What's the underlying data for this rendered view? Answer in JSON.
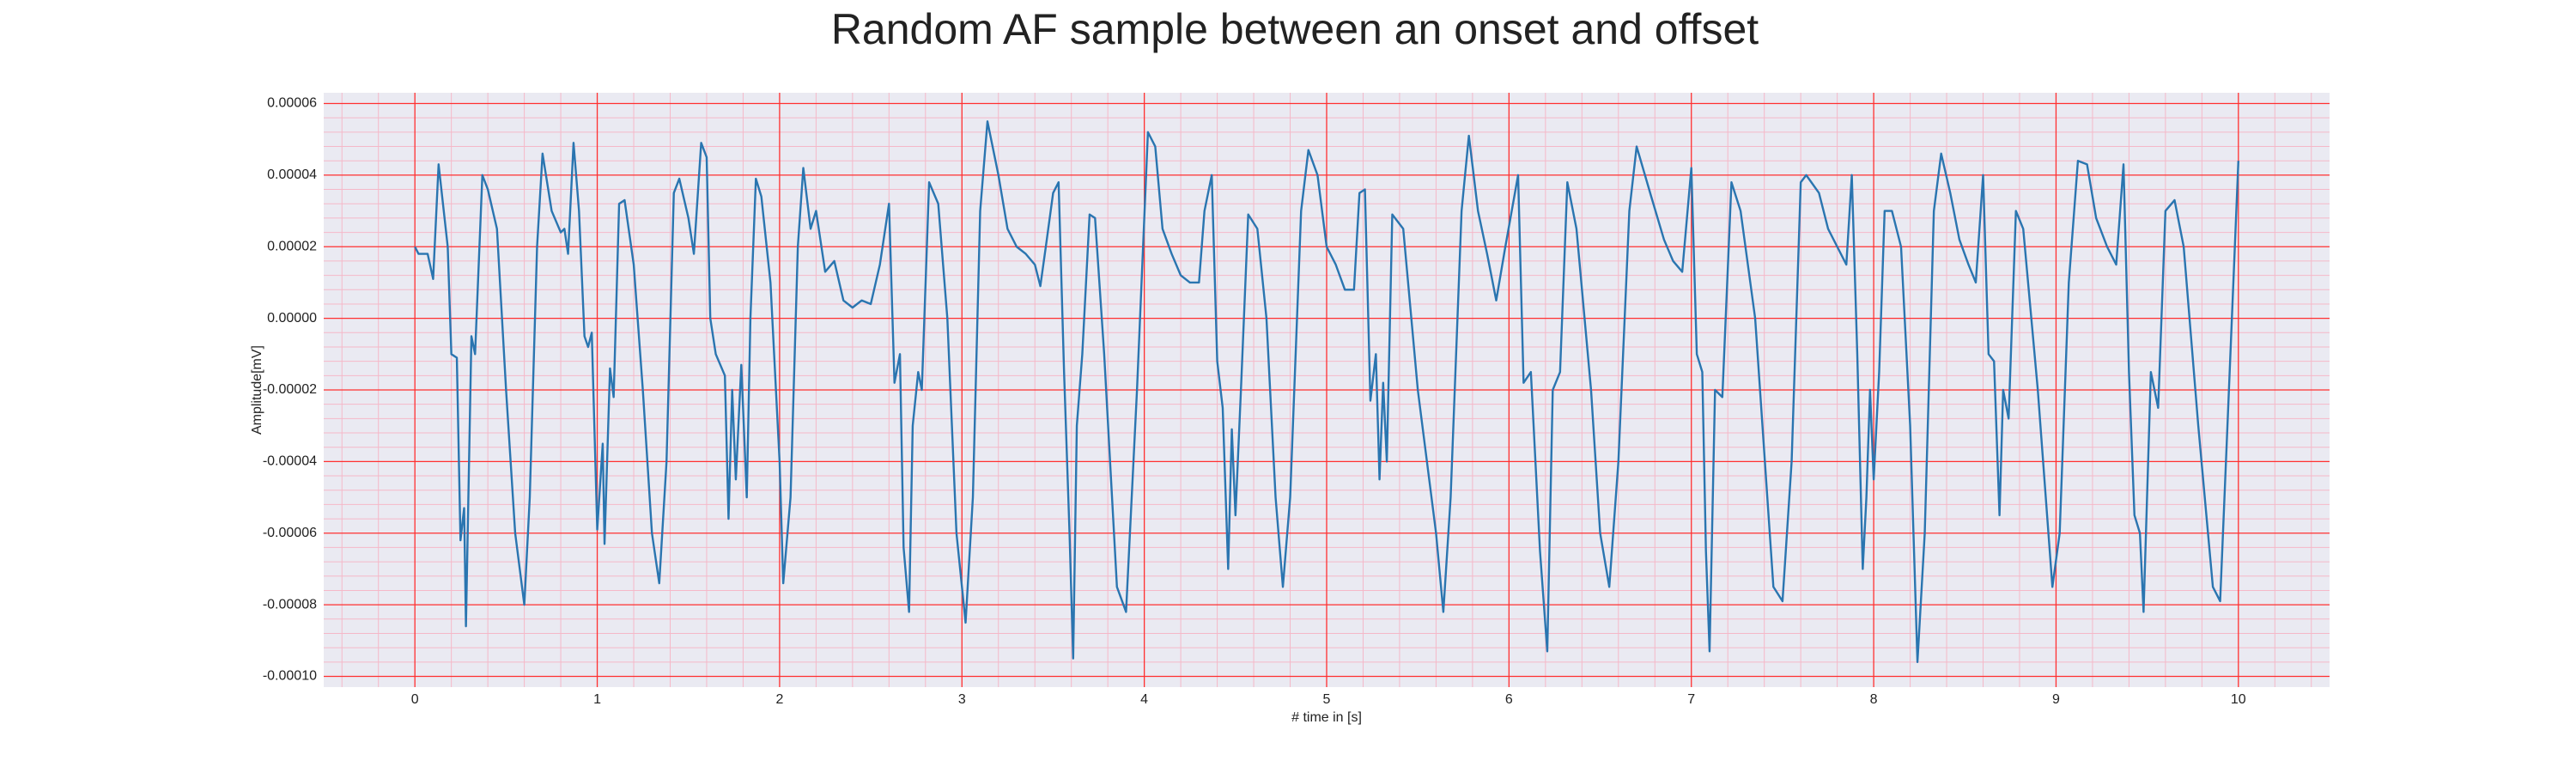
{
  "chart_data": {
    "type": "line",
    "title": "Random AF sample between an onset and offset",
    "x_label": "# time in [s]",
    "y_label": "Amplitude[mV]",
    "color": "#2a75b0",
    "grid": true,
    "grid_color": "#ff3030",
    "minor_grid_color": "#f5b8c8",
    "background": "#eaeaf2",
    "xlim": [
      -0.5,
      10.5
    ],
    "ylim": [
      -0.000103,
      6.3e-05
    ],
    "xticks": [
      0,
      1,
      2,
      3,
      4,
      5,
      6,
      7,
      8,
      9,
      10
    ],
    "yticks": [
      {
        "value": -0.0001,
        "label": "-0.00010"
      },
      {
        "value": -8e-05,
        "label": "-0.00008"
      },
      {
        "value": -6e-05,
        "label": "-0.00006"
      },
      {
        "value": -4e-05,
        "label": "-0.00004"
      },
      {
        "value": -2e-05,
        "label": "-0.00002"
      },
      {
        "value": 0,
        "label": "0.00000"
      },
      {
        "value": 2e-05,
        "label": "0.00002"
      },
      {
        "value": 4e-05,
        "label": "0.00004"
      },
      {
        "value": 6e-05,
        "label": "0.00006"
      }
    ],
    "minor_xticks": [
      -0.4,
      -0.2,
      0.2,
      0.4,
      0.6,
      0.8,
      1.2,
      1.4,
      1.6,
      1.8,
      2.2,
      2.4,
      2.6,
      2.8,
      3.2,
      3.4,
      3.6,
      3.8,
      4.2,
      4.4,
      4.6,
      4.8,
      5.2,
      5.4,
      5.6,
      5.8,
      6.2,
      6.4,
      6.6,
      6.8,
      7.2,
      7.4,
      7.6,
      7.8,
      8.2,
      8.4,
      8.6,
      8.8,
      9.2,
      9.4,
      9.6,
      9.8,
      10.2,
      10.4
    ],
    "minor_yticks": [
      -9.6e-05,
      -9.2e-05,
      -8.8e-05,
      -8.4e-05,
      -7.6e-05,
      -7.2e-05,
      -6.8e-05,
      -6.4e-05,
      -5.6e-05,
      -5.2e-05,
      -4.8e-05,
      -4.4e-05,
      -3.6e-05,
      -3.2e-05,
      -2.8e-05,
      -2.4e-05,
      -1.6e-05,
      -1.2e-05,
      -8e-06,
      -4e-06,
      4e-06,
      8e-06,
      1.2e-05,
      1.6e-05,
      2.4e-05,
      2.8e-05,
      3.2e-05,
      3.6e-05,
      4.4e-05,
      4.8e-05,
      5.2e-05,
      5.6e-05
    ],
    "x": [
      0,
      0.02,
      0.07,
      0.1,
      0.13,
      0.18,
      0.2,
      0.23,
      0.25,
      0.27,
      0.28,
      0.31,
      0.33,
      0.37,
      0.4,
      0.45,
      0.5,
      0.55,
      0.6,
      0.63,
      0.67,
      0.7,
      0.75,
      0.8,
      0.82,
      0.84,
      0.87,
      0.9,
      0.93,
      0.95,
      0.97,
      1.0,
      1.03,
      1.04,
      1.07,
      1.09,
      1.12,
      1.15,
      1.2,
      1.25,
      1.3,
      1.34,
      1.38,
      1.42,
      1.45,
      1.5,
      1.53,
      1.57,
      1.6,
      1.62,
      1.65,
      1.7,
      1.72,
      1.74,
      1.76,
      1.79,
      1.82,
      1.84,
      1.87,
      1.9,
      1.95,
      2.0,
      2.02,
      2.06,
      2.1,
      2.13,
      2.17,
      2.2,
      2.25,
      2.3,
      2.35,
      2.4,
      2.45,
      2.5,
      2.55,
      2.6,
      2.63,
      2.66,
      2.68,
      2.71,
      2.73,
      2.76,
      2.78,
      2.82,
      2.87,
      2.92,
      2.97,
      3.02,
      3.06,
      3.1,
      3.14,
      3.2,
      3.25,
      3.3,
      3.35,
      3.4,
      3.43,
      3.46,
      3.5,
      3.53,
      3.56,
      3.59,
      3.61,
      3.63,
      3.66,
      3.7,
      3.73,
      3.78,
      3.85,
      3.9,
      3.96,
      4.02,
      4.06,
      4.1,
      4.15,
      4.2,
      4.25,
      4.3,
      4.33,
      4.37,
      4.4,
      4.43,
      4.46,
      4.48,
      4.5,
      4.53,
      4.57,
      4.62,
      4.67,
      4.72,
      4.76,
      4.8,
      4.86,
      4.9,
      4.95,
      5.0,
      5.05,
      5.1,
      5.15,
      5.18,
      5.21,
      5.24,
      5.27,
      5.29,
      5.31,
      5.33,
      5.36,
      5.42,
      5.5,
      5.6,
      5.64,
      5.68,
      5.74,
      5.78,
      5.83,
      5.88,
      5.93,
      5.98,
      6.05,
      6.08,
      6.12,
      6.17,
      6.21,
      6.24,
      6.28,
      6.32,
      6.37,
      6.45,
      6.5,
      6.55,
      6.6,
      6.66,
      6.7,
      6.78,
      6.85,
      6.9,
      6.95,
      7.0,
      7.03,
      7.06,
      7.08,
      7.1,
      7.13,
      7.17,
      7.22,
      7.27,
      7.35,
      7.45,
      7.5,
      7.55,
      7.6,
      7.63,
      7.7,
      7.75,
      7.8,
      7.85,
      7.88,
      7.91,
      7.94,
      7.96,
      7.98,
      8.0,
      8.03,
      8.06,
      8.1,
      8.15,
      8.2,
      8.24,
      8.28,
      8.33,
      8.37,
      8.42,
      8.47,
      8.52,
      8.56,
      8.6,
      8.63,
      8.66,
      8.69,
      8.71,
      8.74,
      8.78,
      8.82,
      8.9,
      8.98,
      9.02,
      9.07,
      9.12,
      9.17,
      9.22,
      9.28,
      9.33,
      9.37,
      9.4,
      9.43,
      9.46,
      9.48,
      9.52,
      9.56,
      9.6,
      9.65,
      9.7,
      9.78,
      9.86,
      9.9,
      9.94,
      10.0
    ],
    "values": [
      2e-05,
      1.8e-05,
      1.8e-05,
      1.1e-05,
      4.3e-05,
      2e-05,
      -1e-05,
      -1.1e-05,
      -6.2e-05,
      -5.3e-05,
      -8.6e-05,
      -5e-06,
      -1e-05,
      4e-05,
      3.6e-05,
      2.5e-05,
      -2e-05,
      -6e-05,
      -8e-05,
      -5e-05,
      2e-05,
      4.6e-05,
      3e-05,
      2.4e-05,
      2.5e-05,
      1.8e-05,
      4.9e-05,
      3e-05,
      -5e-06,
      -8e-06,
      -4e-06,
      -5.9e-05,
      -3.5e-05,
      -6.3e-05,
      -1.4e-05,
      -2.2e-05,
      3.2e-05,
      3.3e-05,
      1.5e-05,
      -2e-05,
      -6e-05,
      -7.4e-05,
      -4e-05,
      3.5e-05,
      3.9e-05,
      2.8e-05,
      1.8e-05,
      4.9e-05,
      4.5e-05,
      0,
      -1e-05,
      -1.6e-05,
      -5.6e-05,
      -2e-05,
      -4.5e-05,
      -1.3e-05,
      -5e-05,
      0,
      3.9e-05,
      3.4e-05,
      1e-05,
      -4e-05,
      -7.4e-05,
      -5e-05,
      2e-05,
      4.2e-05,
      2.5e-05,
      3e-05,
      1.3e-05,
      1.6e-05,
      5e-06,
      3e-06,
      5e-06,
      4e-06,
      1.5e-05,
      3.2e-05,
      -1.8e-05,
      -1e-05,
      -6.4e-05,
      -8.2e-05,
      -3e-05,
      -1.5e-05,
      -2e-05,
      3.8e-05,
      3.2e-05,
      0,
      -6e-05,
      -8.5e-05,
      -5e-05,
      3e-05,
      5.5e-05,
      4e-05,
      2.5e-05,
      2e-05,
      1.8e-05,
      1.5e-05,
      9e-06,
      2e-05,
      3.5e-05,
      3.8e-05,
      -1.5e-05,
      -6e-05,
      -9.5e-05,
      -3e-05,
      -1e-05,
      2.9e-05,
      2.8e-05,
      -1e-05,
      -7.5e-05,
      -8.2e-05,
      -2e-05,
      5.2e-05,
      4.8e-05,
      2.5e-05,
      1.8e-05,
      1.2e-05,
      1e-05,
      1e-05,
      3e-05,
      4e-05,
      -1.2e-05,
      -2.5e-05,
      -7e-05,
      -3.1e-05,
      -5.5e-05,
      -2e-05,
      2.9e-05,
      2.5e-05,
      0,
      -5e-05,
      -7.5e-05,
      -5e-05,
      3e-05,
      4.7e-05,
      4e-05,
      2e-05,
      1.5e-05,
      8e-06,
      8e-06,
      3.5e-05,
      3.6e-05,
      -2.3e-05,
      -1e-05,
      -4.5e-05,
      -1.8e-05,
      -4e-05,
      2.9e-05,
      2.5e-05,
      -2e-05,
      -6e-05,
      -8.2e-05,
      -5e-05,
      3e-05,
      5.1e-05,
      3e-05,
      1.8e-05,
      5e-06,
      2e-05,
      4e-05,
      -1.8e-05,
      -1.5e-05,
      -6.5e-05,
      -9.3e-05,
      -2e-05,
      -1.5e-05,
      3.8e-05,
      2.5e-05,
      -2e-05,
      -6e-05,
      -7.5e-05,
      -4e-05,
      3e-05,
      4.8e-05,
      3.4e-05,
      2.2e-05,
      1.6e-05,
      1.3e-05,
      4.2e-05,
      -1e-05,
      -1.5e-05,
      -6.5e-05,
      -9.3e-05,
      -2e-05,
      -2.2e-05,
      3.8e-05,
      3e-05,
      0,
      -7.5e-05,
      -7.9e-05,
      -4e-05,
      3.8e-05,
      4e-05,
      3.5e-05,
      2.5e-05,
      2e-05,
      1.5e-05,
      4e-05,
      -1e-05,
      -7e-05,
      -5e-05,
      -2e-05,
      -4.5e-05,
      -1.5e-05,
      3e-05,
      3e-05,
      2e-05,
      -3e-05,
      -9.6e-05,
      -6e-05,
      3e-05,
      4.6e-05,
      3.5e-05,
      2.2e-05,
      1.5e-05,
      1e-05,
      4e-05,
      -1e-05,
      -1.2e-05,
      -5.5e-05,
      -2e-05,
      -2.8e-05,
      3e-05,
      2.5e-05,
      -2e-05,
      -7.5e-05,
      -6e-05,
      1e-05,
      4.4e-05,
      4.3e-05,
      2.8e-05,
      2e-05,
      1.5e-05,
      4.3e-05,
      -1.5e-05,
      -5.5e-05,
      -6e-05,
      -8.2e-05,
      -1.5e-05,
      -2.5e-05,
      3e-05,
      3.3e-05,
      2e-05,
      -3e-05,
      -7.5e-05,
      -7.9e-05,
      -3e-05,
      4.4e-05
    ]
  }
}
